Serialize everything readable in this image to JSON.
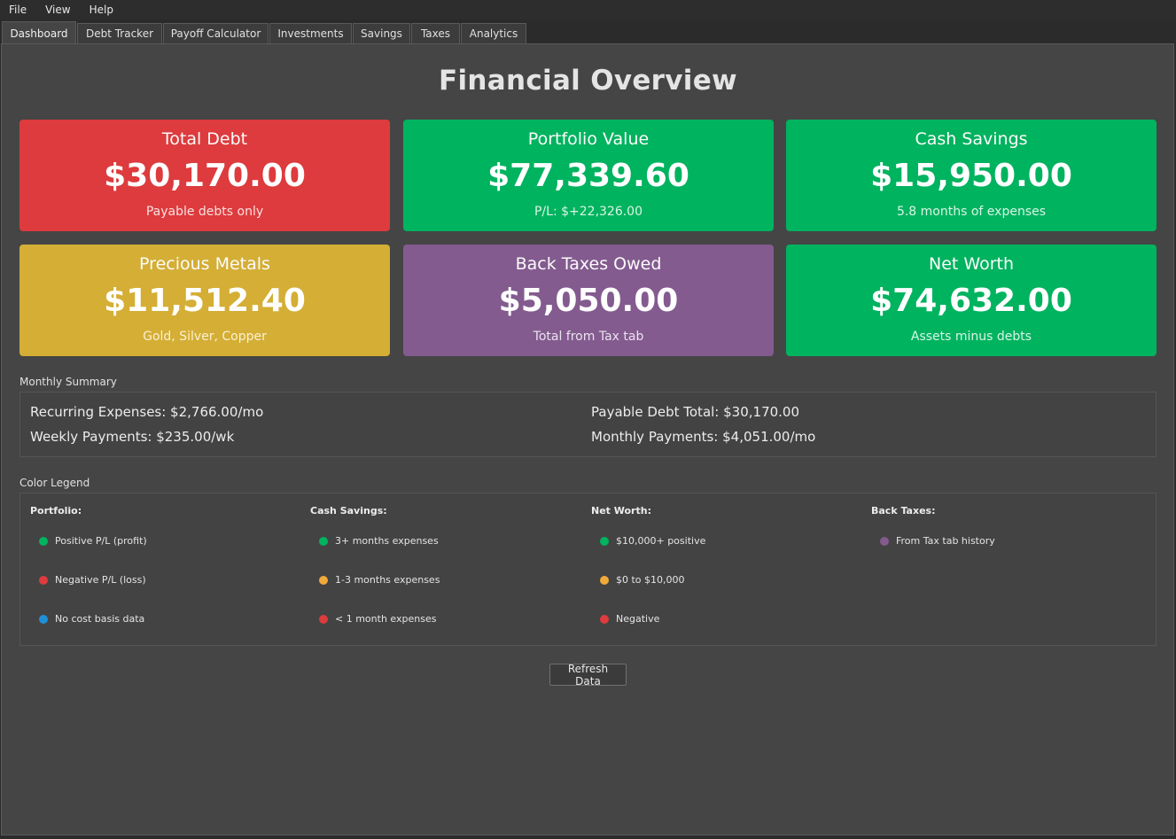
{
  "menu": [
    "File",
    "View",
    "Help"
  ],
  "tabs": [
    "Dashboard",
    "Debt Tracker",
    "Payoff Calculator",
    "Investments",
    "Savings",
    "Taxes",
    "Analytics"
  ],
  "title": "Financial Overview",
  "cards": [
    {
      "title": "Total Debt",
      "value": "$30,170.00",
      "sub": "Payable debts only",
      "color": "#dd3b3d"
    },
    {
      "title": "Portfolio Value",
      "value": "$77,339.60",
      "sub": "P/L: $+22,326.00",
      "color": "#00b35f"
    },
    {
      "title": "Cash Savings",
      "value": "$15,950.00",
      "sub": "5.8 months of expenses",
      "color": "#00b35f"
    },
    {
      "title": "Precious Metals",
      "value": "$11,512.40",
      "sub": "Gold, Silver, Copper",
      "color": "#d4ae35"
    },
    {
      "title": "Back Taxes Owed",
      "value": "$5,050.00",
      "sub": "Total from Tax tab",
      "color": "#835b8f"
    },
    {
      "title": "Net Worth",
      "value": "$74,632.00",
      "sub": "Assets minus debts",
      "color": "#00b35f"
    }
  ],
  "monthly": {
    "label": "Monthly Summary",
    "recurring": "Recurring Expenses: $2,766.00/mo",
    "weekly": "Weekly Payments: $235.00/wk",
    "payable": "Payable Debt Total: $30,170.00",
    "monthly_payments": "Monthly Payments: $4,051.00/mo"
  },
  "legend": {
    "label": "Color Legend",
    "groups": [
      {
        "head": "Portfolio:",
        "items": [
          {
            "text": "Positive P/L (profit)",
            "color": "#00b35f"
          },
          {
            "text": "Negative P/L (loss)",
            "color": "#dd3b3d"
          },
          {
            "text": "No cost basis data",
            "color": "#1f8fd6"
          }
        ]
      },
      {
        "head": "Cash Savings:",
        "items": [
          {
            "text": "3+ months expenses",
            "color": "#00b35f"
          },
          {
            "text": "1-3 months expenses",
            "color": "#f0a93b"
          },
          {
            "text": "< 1 month expenses",
            "color": "#dd3b3d"
          }
        ]
      },
      {
        "head": "Net Worth:",
        "items": [
          {
            "text": "$10,000+ positive",
            "color": "#00b35f"
          },
          {
            "text": "$0 to $10,000",
            "color": "#f0a93b"
          },
          {
            "text": "Negative",
            "color": "#dd3b3d"
          }
        ]
      },
      {
        "head": "Back Taxes:",
        "items": [
          {
            "text": "From Tax tab history",
            "color": "#835b8f"
          }
        ]
      }
    ]
  },
  "refresh_label": "Refresh Data"
}
